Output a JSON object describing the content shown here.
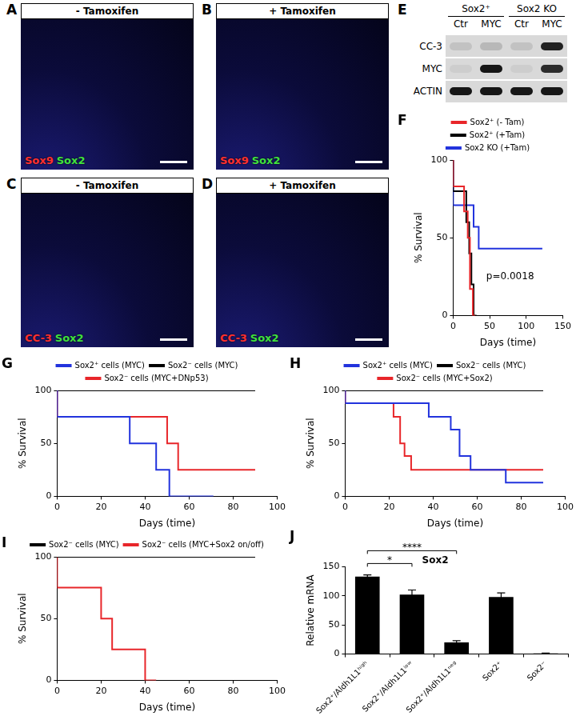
{
  "micrographs": [
    {
      "panel": "A",
      "header": "- Tamoxifen",
      "stains": [
        {
          "text": "Sox9",
          "color": "#ff3030"
        },
        {
          "text": "Sox2",
          "color": "#40e040"
        }
      ]
    },
    {
      "panel": "B",
      "header": "+ Tamoxifen",
      "stains": [
        {
          "text": "Sox9",
          "color": "#ff3030"
        },
        {
          "text": "Sox2",
          "color": "#40e040"
        }
      ]
    },
    {
      "panel": "C",
      "header": "- Tamoxifen",
      "stains": [
        {
          "text": "CC-3",
          "color": "#ff3030"
        },
        {
          "text": "Sox2",
          "color": "#40e040"
        }
      ]
    },
    {
      "panel": "D",
      "header": "+ Tamoxifen",
      "stains": [
        {
          "text": "CC-3",
          "color": "#ff3030"
        },
        {
          "text": "Sox2",
          "color": "#40e040"
        }
      ]
    }
  ],
  "western_blot": {
    "panel": "E",
    "groups": [
      {
        "label": "Sox2⁺",
        "lanes": [
          "Ctr",
          "MYC"
        ]
      },
      {
        "label": "Sox2 KO",
        "lanes": [
          "Ctr",
          "MYC"
        ]
      }
    ],
    "rows": [
      {
        "label": "CC-3",
        "intensity": [
          0.1,
          0.15,
          0.1,
          0.85
        ]
      },
      {
        "label": "MYC",
        "intensity": [
          0.05,
          0.9,
          0.05,
          0.8
        ]
      },
      {
        "label": "ACTIN",
        "intensity": [
          0.9,
          0.9,
          0.9,
          0.9
        ]
      }
    ]
  },
  "chart_data": [
    {
      "panel": "F",
      "type": "step",
      "x_label": "Days (time)",
      "y_label": "% Survival",
      "xlim": [
        0,
        150
      ],
      "xticks": [
        0,
        50,
        100,
        150
      ],
      "ylim": [
        0,
        100
      ],
      "yticks": [
        0,
        50,
        100
      ],
      "grid": false,
      "legend": "top",
      "annotations": [
        "p=0.0018"
      ],
      "series": [
        {
          "name": "Sox2⁺ (- Tam)",
          "color": "#e8262a",
          "x": [
            0,
            15,
            20,
            23,
            27,
            30
          ],
          "values": [
            100,
            83,
            67,
            50,
            17,
            0
          ]
        },
        {
          "name": "Sox2⁺ (+Tam)",
          "color": "#000000",
          "x": [
            0,
            18,
            22,
            25,
            28,
            32
          ],
          "values": [
            100,
            80,
            60,
            40,
            20,
            0
          ]
        },
        {
          "name": "Sox2 KO (+Tam)",
          "color": "#2233dd",
          "x": [
            0,
            28,
            35,
            42,
            122
          ],
          "values": [
            100,
            71,
            57,
            43,
            43
          ]
        }
      ]
    },
    {
      "panel": "G",
      "type": "step",
      "x_label": "Days (time)",
      "y_label": "% Survival",
      "xlim": [
        0,
        100
      ],
      "xticks": [
        0,
        20,
        40,
        60,
        80,
        100
      ],
      "ylim": [
        0,
        100
      ],
      "yticks": [
        0,
        50,
        100
      ],
      "grid": false,
      "legend": "top",
      "series": [
        {
          "name": "Sox2⁺ cells (MYC)",
          "color": "#2233dd",
          "x": [
            0,
            33,
            45,
            51,
            71
          ],
          "values": [
            100,
            75,
            50,
            25,
            0
          ]
        },
        {
          "name": "Sox2⁻ cells (MYC)",
          "color": "#000000",
          "x": [
            0,
            90
          ],
          "values": [
            100,
            100
          ]
        },
        {
          "name": "Sox2⁻ cells (MYC+DNp53)",
          "color": "#e8262a",
          "x": [
            0,
            50,
            55,
            64,
            90
          ],
          "values": [
            100,
            75,
            50,
            25,
            25
          ]
        }
      ]
    },
    {
      "panel": "H",
      "type": "step",
      "x_label": "Days (time)",
      "y_label": "% Survival",
      "xlim": [
        0,
        100
      ],
      "xticks": [
        0,
        20,
        40,
        60,
        80,
        100
      ],
      "ylim": [
        0,
        100
      ],
      "yticks": [
        0,
        50,
        100
      ],
      "grid": false,
      "legend": "top",
      "series": [
        {
          "name": "Sox2⁺ cells (MYC)",
          "color": "#2233dd",
          "x": [
            0,
            38,
            48,
            52,
            57,
            73,
            78,
            90
          ],
          "values": [
            100,
            88,
            75,
            63,
            38,
            25,
            13,
            13
          ]
        },
        {
          "name": "Sox2⁻ cells (MYC)",
          "color": "#000000",
          "x": [
            0,
            90
          ],
          "values": [
            100,
            100
          ]
        },
        {
          "name": "Sox2⁻ cells (MYC+Sox2)",
          "color": "#e8262a",
          "x": [
            0,
            22,
            25,
            27,
            30,
            33,
            90
          ],
          "values": [
            100,
            88,
            75,
            50,
            38,
            25,
            25
          ]
        }
      ]
    },
    {
      "panel": "I",
      "type": "step",
      "x_label": "Days (time)",
      "y_label": "% Survival",
      "xlim": [
        0,
        100
      ],
      "xticks": [
        0,
        20,
        40,
        60,
        80,
        100
      ],
      "ylim": [
        0,
        100
      ],
      "yticks": [
        0,
        50,
        100
      ],
      "grid": false,
      "legend": "top",
      "series": [
        {
          "name": "Sox2⁻ cells (MYC)",
          "color": "#000000",
          "x": [
            0,
            90
          ],
          "values": [
            100,
            100
          ]
        },
        {
          "name": "Sox2⁻ cells (MYC+Sox2 on/off)",
          "color": "#e8262a",
          "x": [
            0,
            20,
            25,
            40,
            45
          ],
          "values": [
            100,
            75,
            50,
            25,
            0
          ]
        }
      ]
    },
    {
      "panel": "J",
      "type": "bar",
      "title": "Sox2",
      "y_label": "Relative mRNA",
      "categories": [
        "Sox2⁺/Aldh1L1ʰⁱᵍʰ",
        "Sox2⁺/Aldh1L1ˡᵒʷ",
        "Sox2⁺/Aldh1L1ⁿᵉᵍ",
        "Sox2⁺",
        "Sox2⁻"
      ],
      "values": [
        133,
        102,
        20,
        98,
        1
      ],
      "errors": [
        3,
        8,
        3,
        7,
        0.5
      ],
      "color": "#000000",
      "ylim": [
        0,
        150
      ],
      "yticks": [
        0,
        50,
        100,
        150
      ],
      "grid": false,
      "significance": [
        {
          "from": 0,
          "to": 1,
          "label": "*"
        },
        {
          "from": 0,
          "to": 2,
          "label": "****"
        }
      ]
    }
  ]
}
